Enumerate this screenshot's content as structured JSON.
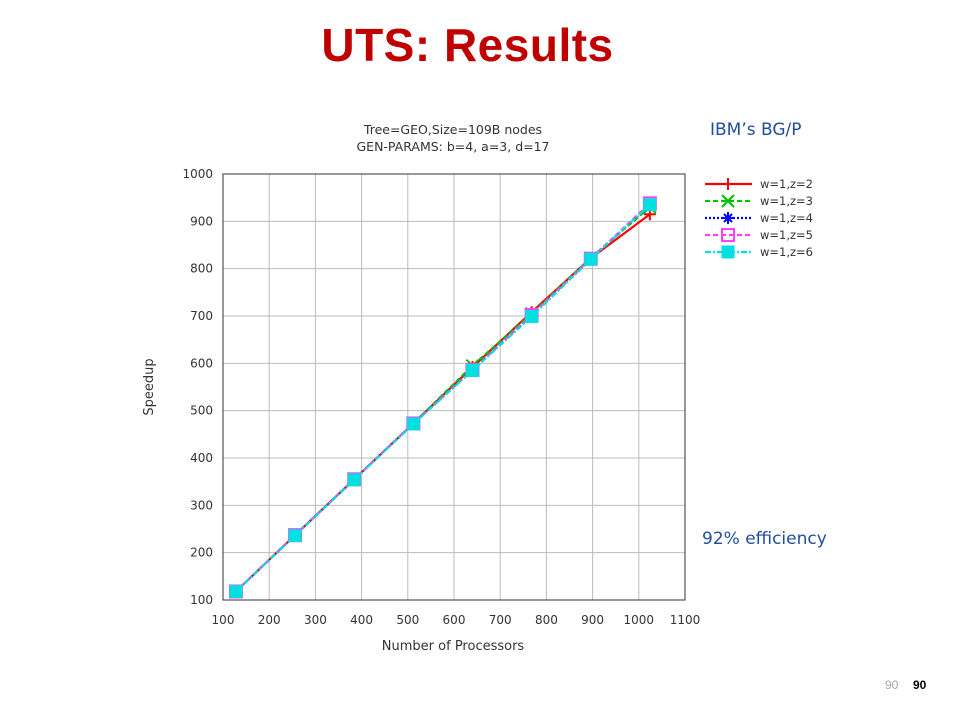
{
  "slide": {
    "title": "UTS: Results",
    "annotation_platform": "IBM’s BG/P",
    "annotation_efficiency": "92% efficiency",
    "page_number_light": "90",
    "page_number_bold": "90"
  },
  "chart_data": {
    "type": "line",
    "title_line1": "Tree=GEO,Size=109B nodes",
    "title_line2": "GEN-PARAMS: b=4, a=3, d=17",
    "xlabel": "Number of Processors",
    "ylabel": "Speedup",
    "xlim": [
      100,
      1100
    ],
    "ylim": [
      100,
      1000
    ],
    "xticks": [
      100,
      200,
      300,
      400,
      500,
      600,
      700,
      800,
      900,
      1000,
      1100
    ],
    "yticks": [
      100,
      200,
      300,
      400,
      500,
      600,
      700,
      800,
      900,
      1000
    ],
    "grid": true,
    "legend_position": "right",
    "x": [
      128,
      256,
      384,
      512,
      640,
      768,
      896,
      1024
    ],
    "series": [
      {
        "name": "w=1,z=2",
        "color": "#ff0000",
        "marker": "plus",
        "dash": "solid",
        "values": [
          118,
          237,
          355,
          473,
          592,
          708,
          822,
          915
        ]
      },
      {
        "name": "w=1,z=3",
        "color": "#00c000",
        "marker": "x",
        "dash": "dashed",
        "values": [
          118,
          237,
          355,
          473,
          595,
          705,
          823,
          930
        ]
      },
      {
        "name": "w=1,z=4",
        "color": "#0000ff",
        "marker": "star",
        "dash": "dotted",
        "values": [
          118,
          237,
          355,
          473,
          586,
          700,
          820,
          935
        ]
      },
      {
        "name": "w=1,z=5",
        "color": "#ff40ff",
        "marker": "open-square",
        "dash": "dashed",
        "values": [
          118,
          237,
          355,
          473,
          586,
          702,
          821,
          938
        ]
      },
      {
        "name": "w=1,z=6",
        "color": "#00e0e0",
        "marker": "filled-square",
        "dash": "dashdot",
        "values": [
          118,
          236,
          354,
          472,
          585,
          699,
          820,
          935
        ]
      }
    ]
  }
}
